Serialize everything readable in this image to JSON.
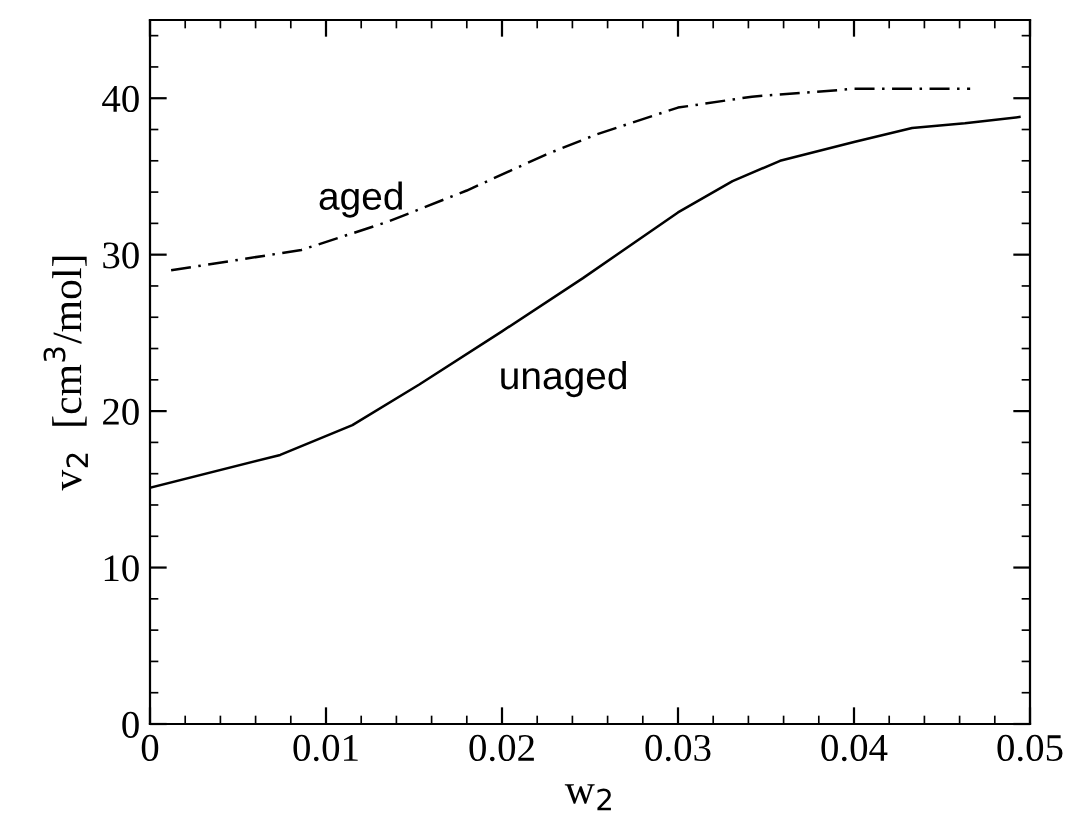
{
  "chart_data": {
    "type": "line",
    "xlabel": "w$_{2}$",
    "ylabel": "v$_{2}$  [cm$^{3}$/mol]",
    "xlim": [
      0,
      0.05
    ],
    "xticks": [
      0,
      0.01,
      0.02,
      0.03,
      0.04,
      0.05
    ],
    "ylim": [
      0,
      45
    ],
    "yticks": [
      0,
      10,
      20,
      30,
      40
    ],
    "grid": false,
    "legend": false,
    "marker": "none",
    "series": [
      {
        "name": "unaged",
        "color": "#000000",
        "line_style": "solid",
        "x": [
          0,
          0.0074,
          0.0115,
          0.0153,
          0.02,
          0.0246,
          0.03,
          0.0331,
          0.0358,
          0.04,
          0.0433,
          0.0463,
          0.0494
        ],
        "values": [
          15.1,
          17.2,
          19.1,
          21.7,
          25.1,
          28.5,
          32.7,
          34.7,
          36.0,
          37.2,
          38.1,
          38.4,
          38.8
        ]
      },
      {
        "name": "aged",
        "color": "#000000",
        "line_style": "dashdot",
        "x": [
          0.0012,
          0.0086,
          0.0135,
          0.018,
          0.0225,
          0.0254,
          0.03,
          0.0342,
          0.04,
          0.0466
        ],
        "values": [
          29.0,
          30.3,
          32.1,
          34.1,
          36.4,
          37.7,
          39.4,
          40.1,
          40.6,
          40.6
        ]
      }
    ]
  }
}
